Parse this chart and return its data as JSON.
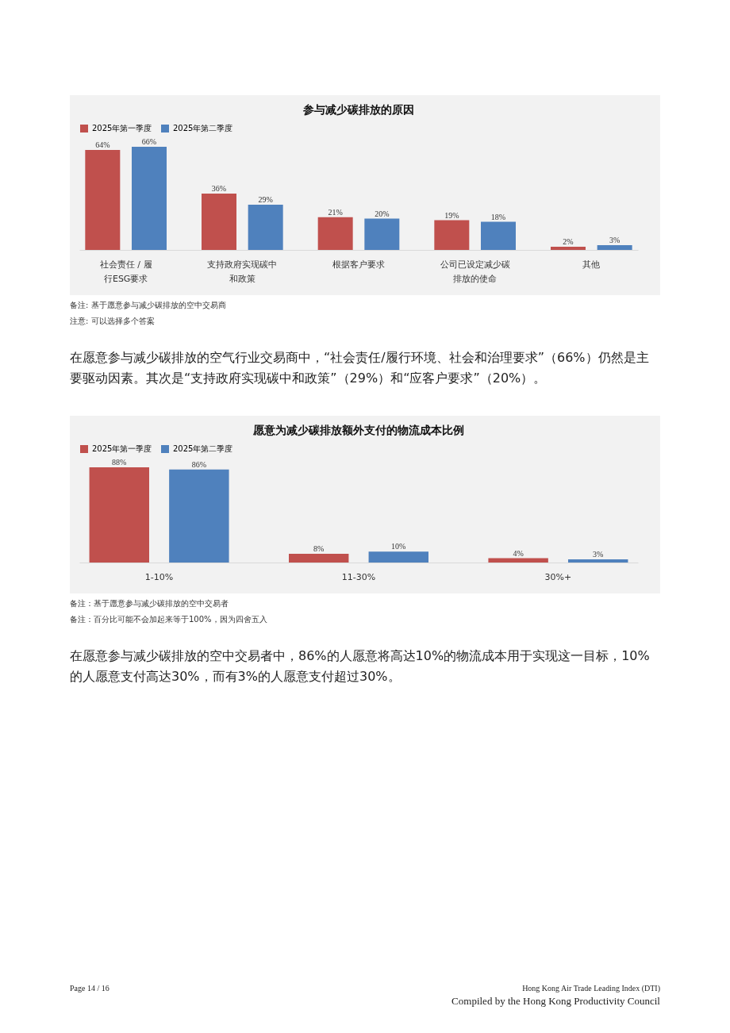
{
  "chart_data": [
    {
      "type": "bar",
      "title": "参与减少碳排放的原因",
      "categories": [
        "社会责任 / 履行ESG要求",
        "支持政府实现碳中和政策",
        "根据客户要求",
        "公司已设定减少碳排放的使命",
        "其他"
      ],
      "series": [
        {
          "name": "2025年第一季度",
          "color": "#c0504d",
          "values": [
            64,
            36,
            21,
            19,
            2
          ],
          "value_labels": [
            "64%",
            "36%",
            "21%",
            "19%",
            "2%"
          ]
        },
        {
          "name": "2025年第二季度",
          "color": "#4f81bd",
          "values": [
            66,
            29,
            20,
            18,
            3
          ],
          "value_labels": [
            "66%",
            "29%",
            "20%",
            "18%",
            "3%"
          ]
        }
      ],
      "legend": "top",
      "annotations": [
        "备注: 基于愿意参与减少碳排放的空中交易商",
        "注意: 可以选择多个答案",
        "在愿意参与减少碳排放的空气行业交易商中，“社会责任/履行环境、社会和治理要求”（66%）仍然是主要驱动因素。其次是“支持政府实现碳中和政策”（29%）和“应客户要求”（20%）。"
      ]
    },
    {
      "type": "bar",
      "title": "愿意为减少碳排放额外支付的物流成本比例",
      "categories": [
        "1-10%",
        "11-30%",
        "30%+"
      ],
      "series": [
        {
          "name": "2025年第一季度",
          "color": "#c0504d",
          "values": [
            88,
            8,
            4
          ],
          "value_labels": [
            "88%",
            "8%",
            "4%"
          ]
        },
        {
          "name": "2025年第二季度",
          "color": "#4f81bd",
          "values": [
            86,
            10,
            3
          ],
          "value_labels": [
            "86%",
            "10%",
            "3%"
          ]
        }
      ],
      "legend": "top",
      "annotations": [
        "备注：基于愿意参与减少碳排放的空中交易者",
        "备注：百分比可能不会加起来等于100%，因为四舍五入",
        "在愿意参与减少碳排放的空中交易者中，86%的人愿意将高达10%的物流成本用于实现这一目标，10%的人愿意支付高达30%，而有3%的人愿意支付超过30%。",
        "Page 14 / 16",
        "Hong Kong Air Trade Leading Index (DTI)",
        "Compiled by the Hong Kong Productivity Council"
      ]
    }
  ]
}
